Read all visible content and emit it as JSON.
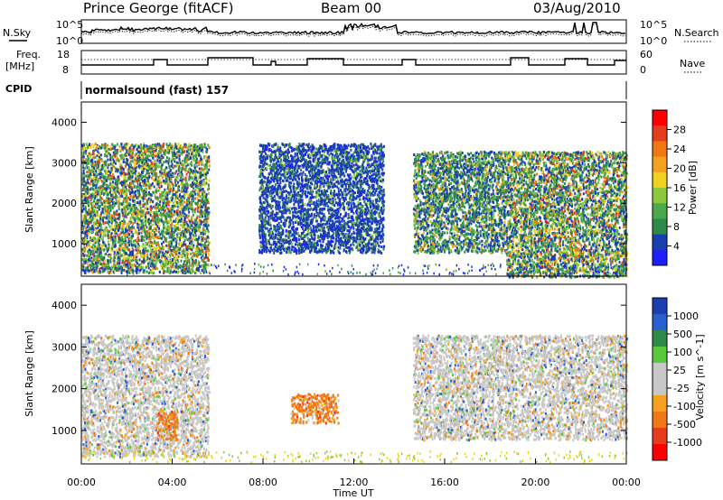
{
  "header": {
    "title": "Prince George (fitACF)",
    "beam": "Beam 00",
    "date": "03/Aug/2010"
  },
  "top_panels": {
    "nsky_label": "N.Sky",
    "nsearch_label": "N.Search",
    "noise_ticks": [
      "10^5",
      "10^0"
    ],
    "noise_ticks_right": [
      "10^5",
      "10^0"
    ],
    "freq_label_line1": "Freq.",
    "freq_label_line2": "[MHz]",
    "freq_ticks": [
      "18",
      "8"
    ],
    "nave_label": "Nave",
    "nave_ticks": [
      "60",
      "0"
    ],
    "cpid_label": "CPID",
    "cpid_value": "normalsound (fast) 157"
  },
  "colors": {
    "scale": [
      "#1e1eff",
      "#1a3fb0",
      "#2f8a4a",
      "#4ba84b",
      "#8cc83c",
      "#f0d21e",
      "#f5a01e",
      "#f07814",
      "#e63c1e",
      "#ff0000"
    ],
    "velocity": [
      "#1a3fb0",
      "#2a5fd0",
      "#2f8a4a",
      "#5ac83c",
      "#c8c8c8",
      "#c8c8c8",
      "#f5a01e",
      "#f07814",
      "#e63c1e",
      "#ff0000"
    ]
  },
  "chart_data": [
    {
      "type": "heatmap",
      "panel": "power",
      "ylabel": "Slant Range [km]",
      "yticks": [
        "1000",
        "2000",
        "3000",
        "4000"
      ],
      "ylim": [
        200,
        4500
      ],
      "colorbar_label": "Power [dB]",
      "colorbar_ticks": [
        "4",
        "8",
        "12",
        "16",
        "20",
        "24",
        "28"
      ],
      "regions": [
        {
          "t0": 0.0,
          "t1": 5.6,
          "r0": 300,
          "r1": 3500,
          "level": "moderate-strong"
        },
        {
          "t0": 7.8,
          "t1": 13.3,
          "r0": 800,
          "r1": 3500,
          "level": "weak-sparse"
        },
        {
          "t0": 14.6,
          "t1": 18.7,
          "r0": 800,
          "r1": 3300,
          "level": "moderate"
        },
        {
          "t0": 18.7,
          "t1": 24.0,
          "r0": 200,
          "r1": 3300,
          "level": "moderate-strong"
        }
      ]
    },
    {
      "type": "heatmap",
      "panel": "velocity",
      "ylabel": "Slant Range [km]",
      "xlabel": "Time UT",
      "xticks": [
        "00:00",
        "04:00",
        "08:00",
        "12:00",
        "16:00",
        "20:00",
        "00:00"
      ],
      "yticks": [
        "1000",
        "2000",
        "3000",
        "4000"
      ],
      "ylim": [
        200,
        4500
      ],
      "colorbar_label": "Velocity [m s^-1]",
      "colorbar_ticks": [
        "1000",
        "500",
        "100",
        "25",
        "-25",
        "-100",
        "-500",
        "-1000"
      ],
      "regions": [
        {
          "t0": 0.0,
          "t1": 5.6,
          "r0": 400,
          "r1": 3300,
          "level": "near-zero"
        },
        {
          "t0": 3.3,
          "t1": 4.2,
          "r0": 800,
          "r1": 1500,
          "level": "negative"
        },
        {
          "t0": 9.2,
          "t1": 11.3,
          "r0": 1200,
          "r1": 1900,
          "level": "negative"
        },
        {
          "t0": 14.6,
          "t1": 24.0,
          "r0": 800,
          "r1": 3300,
          "level": "near-zero"
        }
      ]
    }
  ]
}
